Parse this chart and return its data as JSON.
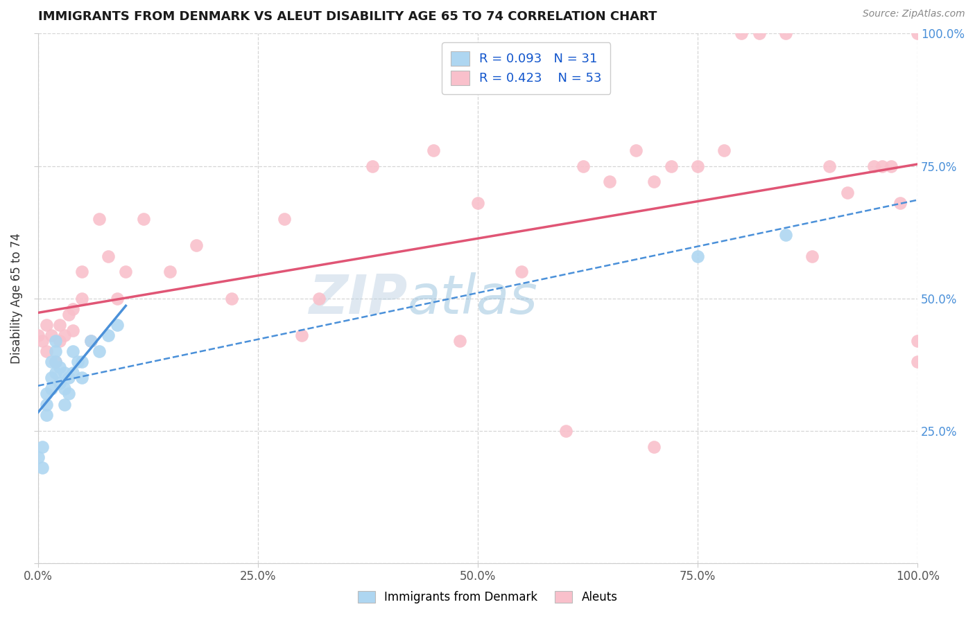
{
  "title": "IMMIGRANTS FROM DENMARK VS ALEUT DISABILITY AGE 65 TO 74 CORRELATION CHART",
  "source": "Source: ZipAtlas.com",
  "ylabel": "Disability Age 65 to 74",
  "watermark": "ZIPAtlas",
  "legend": {
    "denmark": {
      "R": 0.093,
      "N": 31
    },
    "aleuts": {
      "R": 0.423,
      "N": 53
    }
  },
  "denmark_x": [
    0.0,
    0.005,
    0.005,
    0.01,
    0.01,
    0.01,
    0.015,
    0.015,
    0.015,
    0.02,
    0.02,
    0.02,
    0.02,
    0.025,
    0.025,
    0.03,
    0.03,
    0.03,
    0.035,
    0.035,
    0.04,
    0.04,
    0.045,
    0.05,
    0.05,
    0.06,
    0.07,
    0.08,
    0.09,
    0.75,
    0.85
  ],
  "denmark_y": [
    0.2,
    0.22,
    0.18,
    0.3,
    0.28,
    0.32,
    0.35,
    0.33,
    0.38,
    0.36,
    0.4,
    0.38,
    0.42,
    0.34,
    0.37,
    0.3,
    0.33,
    0.36,
    0.32,
    0.35,
    0.36,
    0.4,
    0.38,
    0.35,
    0.38,
    0.42,
    0.4,
    0.43,
    0.45,
    0.58,
    0.62
  ],
  "aleuts_x": [
    0.0,
    0.005,
    0.01,
    0.01,
    0.015,
    0.02,
    0.025,
    0.025,
    0.03,
    0.035,
    0.04,
    0.04,
    0.05,
    0.05,
    0.06,
    0.07,
    0.08,
    0.09,
    0.1,
    0.12,
    0.15,
    0.18,
    0.22,
    0.28,
    0.32,
    0.38,
    0.45,
    0.5,
    0.55,
    0.62,
    0.65,
    0.68,
    0.7,
    0.72,
    0.75,
    0.78,
    0.8,
    0.82,
    0.85,
    0.88,
    0.9,
    0.92,
    0.95,
    0.96,
    0.97,
    0.98,
    1.0,
    1.0,
    1.0,
    0.48,
    0.3,
    0.6,
    0.7
  ],
  "aleuts_y": [
    0.43,
    0.42,
    0.4,
    0.45,
    0.43,
    0.38,
    0.42,
    0.45,
    0.43,
    0.47,
    0.44,
    0.48,
    0.55,
    0.5,
    0.42,
    0.65,
    0.58,
    0.5,
    0.55,
    0.65,
    0.55,
    0.6,
    0.5,
    0.65,
    0.5,
    0.75,
    0.78,
    0.68,
    0.55,
    0.75,
    0.72,
    0.78,
    0.72,
    0.75,
    0.75,
    0.78,
    1.0,
    1.0,
    1.0,
    0.58,
    0.75,
    0.7,
    0.75,
    0.75,
    0.75,
    0.68,
    0.38,
    0.42,
    1.0,
    0.42,
    0.43,
    0.25,
    0.22
  ],
  "xlim": [
    0.0,
    1.0
  ],
  "ylim": [
    0.0,
    1.0
  ],
  "xticks": [
    0.0,
    0.25,
    0.5,
    0.75,
    1.0
  ],
  "xticklabels": [
    "0.0%",
    "25.0%",
    "50.0%",
    "75.0%",
    "100.0%"
  ],
  "yticks": [
    0.0,
    0.25,
    0.5,
    0.75,
    1.0
  ],
  "yticklabels": [
    "",
    "",
    "",
    "",
    ""
  ],
  "right_yticks": [
    0.25,
    0.5,
    0.75,
    1.0
  ],
  "right_yticklabels": [
    "25.0%",
    "50.0%",
    "75.0%",
    "100.0%"
  ],
  "background_color": "#ffffff",
  "grid_color": "#cccccc",
  "title_color": "#1a1a1a",
  "axis_label_color": "#333333",
  "tick_color": "#555555",
  "source_color": "#888888",
  "denmark_scatter_color": "#aed6f1",
  "aleuts_scatter_color": "#f9c0cb",
  "denmark_line_color": "#4a90d9",
  "aleuts_line_color": "#e05575",
  "right_tick_color": "#4a90d9",
  "legend_denmark_color": "#aed6f1",
  "legend_aleuts_color": "#f9c0cb",
  "legend_text_color": "#1155cc"
}
